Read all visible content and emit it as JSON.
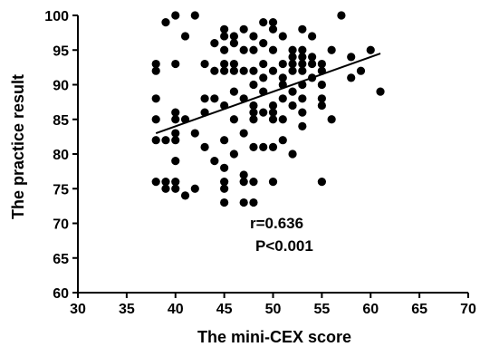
{
  "chart_data": {
    "type": "scatter",
    "xlabel": "The mini-CEX score",
    "ylabel": "The practice result",
    "xlim": [
      30,
      70
    ],
    "ylim": [
      60,
      100
    ],
    "xticks": [
      30,
      35,
      40,
      45,
      50,
      55,
      60,
      65,
      70
    ],
    "yticks": [
      60,
      65,
      70,
      75,
      80,
      85,
      90,
      95,
      100
    ],
    "grid": false,
    "annotations": [
      "r=0.636",
      "P<0.001"
    ],
    "colors": {
      "points": "#000000",
      "line": "#000000",
      "axes": "#000000"
    },
    "trendline": {
      "x": [
        38,
        61
      ],
      "y": [
        83,
        94.5
      ]
    },
    "series": [
      {
        "points": [
          [
            38,
            93
          ],
          [
            38,
            92
          ],
          [
            38,
            88
          ],
          [
            38,
            85
          ],
          [
            38,
            82
          ],
          [
            38,
            76
          ],
          [
            39,
            99
          ],
          [
            39,
            82
          ],
          [
            39,
            76
          ],
          [
            39,
            75
          ],
          [
            40,
            100
          ],
          [
            40,
            93
          ],
          [
            40,
            86
          ],
          [
            40,
            85
          ],
          [
            40,
            83
          ],
          [
            40,
            82
          ],
          [
            40,
            79
          ],
          [
            40,
            76
          ],
          [
            40,
            75
          ],
          [
            41,
            97
          ],
          [
            41,
            85
          ],
          [
            41,
            74
          ],
          [
            42,
            100
          ],
          [
            42,
            83
          ],
          [
            42,
            75
          ],
          [
            43,
            93
          ],
          [
            43,
            88
          ],
          [
            43,
            86
          ],
          [
            43,
            81
          ],
          [
            44,
            96
          ],
          [
            44,
            92
          ],
          [
            44,
            88
          ],
          [
            44,
            79
          ],
          [
            45,
            98
          ],
          [
            45,
            97
          ],
          [
            45,
            95
          ],
          [
            45,
            93
          ],
          [
            45,
            92
          ],
          [
            45,
            87
          ],
          [
            45,
            82
          ],
          [
            45,
            78
          ],
          [
            45,
            76
          ],
          [
            45,
            75
          ],
          [
            45,
            73
          ],
          [
            46,
            97
          ],
          [
            46,
            96
          ],
          [
            46,
            93
          ],
          [
            46,
            92
          ],
          [
            46,
            89
          ],
          [
            46,
            85
          ],
          [
            46,
            80
          ],
          [
            47,
            98
          ],
          [
            47,
            95
          ],
          [
            47,
            92
          ],
          [
            47,
            88
          ],
          [
            47,
            83
          ],
          [
            47,
            77
          ],
          [
            47,
            76
          ],
          [
            47,
            73
          ],
          [
            48,
            97
          ],
          [
            48,
            95
          ],
          [
            48,
            92
          ],
          [
            48,
            90
          ],
          [
            48,
            87
          ],
          [
            48,
            86
          ],
          [
            48,
            85
          ],
          [
            48,
            81
          ],
          [
            48,
            76
          ],
          [
            48,
            73
          ],
          [
            49,
            99
          ],
          [
            49,
            96
          ],
          [
            49,
            93
          ],
          [
            49,
            91
          ],
          [
            49,
            89
          ],
          [
            49,
            86
          ],
          [
            49,
            81
          ],
          [
            50,
            99
          ],
          [
            50,
            98
          ],
          [
            50,
            95
          ],
          [
            50,
            92
          ],
          [
            50,
            87
          ],
          [
            50,
            86
          ],
          [
            50,
            85
          ],
          [
            50,
            81
          ],
          [
            50,
            76
          ],
          [
            51,
            97
          ],
          [
            51,
            93
          ],
          [
            51,
            91
          ],
          [
            51,
            90
          ],
          [
            51,
            88
          ],
          [
            51,
            85
          ],
          [
            51,
            82
          ],
          [
            52,
            95
          ],
          [
            52,
            94
          ],
          [
            52,
            93
          ],
          [
            52,
            92
          ],
          [
            52,
            89
          ],
          [
            52,
            87
          ],
          [
            52,
            80
          ],
          [
            53,
            98
          ],
          [
            53,
            95
          ],
          [
            53,
            94
          ],
          [
            53,
            93
          ],
          [
            53,
            92
          ],
          [
            53,
            90
          ],
          [
            53,
            88
          ],
          [
            53,
            86
          ],
          [
            53,
            84
          ],
          [
            54,
            97
          ],
          [
            54,
            94
          ],
          [
            54,
            93
          ],
          [
            54,
            91
          ],
          [
            55,
            93
          ],
          [
            55,
            92
          ],
          [
            55,
            90
          ],
          [
            55,
            88
          ],
          [
            55,
            87
          ],
          [
            55,
            76
          ],
          [
            56,
            95
          ],
          [
            56,
            85
          ],
          [
            57,
            100
          ],
          [
            58,
            94
          ],
          [
            58,
            91
          ],
          [
            59,
            92
          ],
          [
            60,
            95
          ],
          [
            61,
            89
          ]
        ]
      }
    ]
  }
}
